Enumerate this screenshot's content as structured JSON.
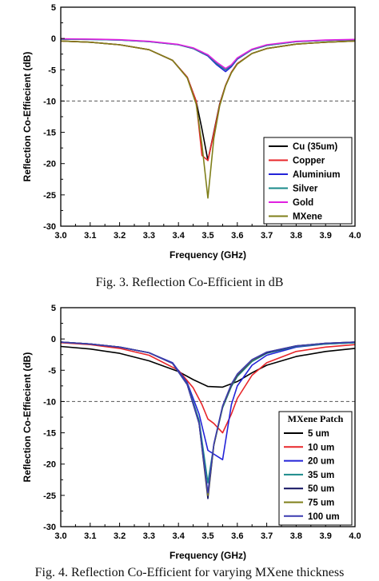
{
  "chart_data": [
    {
      "type": "line",
      "xlabel": "Frequency (GHz)",
      "ylabel": "Reflection Co-Effiecient (dB)",
      "xlim": [
        3.0,
        4.0
      ],
      "ylim": [
        -30,
        5
      ],
      "xticks": [
        "3.0",
        "3.1",
        "3.2",
        "3.3",
        "3.4",
        "3.5",
        "3.6",
        "3.7",
        "3.8",
        "3.9",
        "4.0"
      ],
      "yticks": [
        "5",
        "0",
        "-5",
        "-10",
        "-15",
        "-20",
        "-25",
        "-30"
      ],
      "reference_line": -10,
      "legend_position": "bottom-right",
      "legend_title": "",
      "series": [
        {
          "name": "Cu (35um)",
          "color": "#000000",
          "x": [
            3.0,
            3.1,
            3.2,
            3.3,
            3.38,
            3.43,
            3.46,
            3.48,
            3.5,
            3.52,
            3.54,
            3.56,
            3.58,
            3.6,
            3.65,
            3.7,
            3.8,
            3.9,
            4.0
          ],
          "y": [
            -0.4,
            -0.6,
            -1.0,
            -1.8,
            -3.5,
            -6.2,
            -10.0,
            -14.5,
            -19.5,
            -15.0,
            -10.5,
            -7.5,
            -5.4,
            -4.0,
            -2.4,
            -1.6,
            -0.9,
            -0.6,
            -0.4
          ]
        },
        {
          "name": "Copper",
          "color": "#e8262a",
          "x": [
            3.0,
            3.1,
            3.2,
            3.3,
            3.38,
            3.43,
            3.46,
            3.48,
            3.5,
            3.52,
            3.54,
            3.56,
            3.58,
            3.6,
            3.65,
            3.7,
            3.8,
            3.9,
            4.0
          ],
          "y": [
            -0.4,
            -0.6,
            -1.0,
            -1.8,
            -3.5,
            -6.2,
            -10.0,
            -18.7,
            -19.5,
            -15.2,
            -10.6,
            -7.5,
            -5.4,
            -4.0,
            -2.4,
            -1.6,
            -0.9,
            -0.6,
            -0.4
          ]
        },
        {
          "name": "Aluminium",
          "color": "#2323d8",
          "x": [
            3.0,
            3.1,
            3.2,
            3.3,
            3.4,
            3.45,
            3.5,
            3.53,
            3.56,
            3.58,
            3.6,
            3.65,
            3.7,
            3.8,
            3.9,
            4.0
          ],
          "y": [
            -0.1,
            -0.15,
            -0.25,
            -0.5,
            -1.0,
            -1.6,
            -2.8,
            -4.2,
            -5.3,
            -4.5,
            -3.3,
            -1.8,
            -1.1,
            -0.5,
            -0.3,
            -0.2
          ]
        },
        {
          "name": "Silver",
          "color": "#1a8a8a",
          "x": [
            3.0,
            3.1,
            3.2,
            3.3,
            3.4,
            3.45,
            3.5,
            3.53,
            3.56,
            3.58,
            3.6,
            3.65,
            3.7,
            3.8,
            3.9,
            4.0
          ],
          "y": [
            -0.1,
            -0.15,
            -0.25,
            -0.5,
            -1.0,
            -1.6,
            -2.7,
            -4.0,
            -5.0,
            -4.3,
            -3.2,
            -1.8,
            -1.1,
            -0.5,
            -0.3,
            -0.2
          ]
        },
        {
          "name": "Gold",
          "color": "#e020e0",
          "x": [
            3.0,
            3.1,
            3.2,
            3.3,
            3.4,
            3.45,
            3.5,
            3.53,
            3.56,
            3.58,
            3.6,
            3.65,
            3.7,
            3.8,
            3.9,
            4.0
          ],
          "y": [
            -0.05,
            -0.1,
            -0.2,
            -0.45,
            -0.95,
            -1.5,
            -2.6,
            -3.8,
            -4.8,
            -4.2,
            -3.1,
            -1.7,
            -1.0,
            -0.45,
            -0.25,
            -0.15
          ]
        },
        {
          "name": "MXene",
          "color": "#7f7f1a",
          "x": [
            3.0,
            3.1,
            3.2,
            3.3,
            3.38,
            3.43,
            3.46,
            3.48,
            3.5,
            3.52,
            3.54,
            3.56,
            3.58,
            3.6,
            3.65,
            3.7,
            3.8,
            3.9,
            4.0
          ],
          "y": [
            -0.4,
            -0.6,
            -1.0,
            -1.8,
            -3.5,
            -6.3,
            -10.5,
            -17.0,
            -25.5,
            -16.0,
            -10.8,
            -7.6,
            -5.5,
            -4.1,
            -2.4,
            -1.6,
            -0.9,
            -0.6,
            -0.4
          ]
        }
      ]
    },
    {
      "type": "line",
      "xlabel": "Frequency (GHz)",
      "ylabel": "Reflection Co-Effiecient (dB)",
      "xlim": [
        3.0,
        4.0
      ],
      "ylim": [
        -30,
        5
      ],
      "xticks": [
        "3.0",
        "3.1",
        "3.2",
        "3.3",
        "3.4",
        "3.5",
        "3.6",
        "3.7",
        "3.8",
        "3.9",
        "4.0"
      ],
      "yticks": [
        "5",
        "0",
        "-5",
        "-10",
        "-15",
        "-20",
        "-25",
        "-30"
      ],
      "reference_line": -10,
      "legend_position": "bottom-right",
      "legend_title": "MXene Patch",
      "series": [
        {
          "name": "5 um",
          "color": "#000000",
          "x": [
            3.0,
            3.1,
            3.2,
            3.3,
            3.4,
            3.45,
            3.5,
            3.55,
            3.6,
            3.65,
            3.7,
            3.8,
            3.9,
            4.0
          ],
          "y": [
            -1.2,
            -1.6,
            -2.3,
            -3.5,
            -5.2,
            -6.5,
            -7.6,
            -7.7,
            -6.8,
            -5.4,
            -4.2,
            -2.8,
            -2.0,
            -1.5
          ]
        },
        {
          "name": "10 um",
          "color": "#e8262a",
          "x": [
            3.0,
            3.1,
            3.2,
            3.3,
            3.4,
            3.45,
            3.48,
            3.5,
            3.52,
            3.55,
            3.58,
            3.6,
            3.65,
            3.7,
            3.8,
            3.9,
            4.0
          ],
          "y": [
            -0.6,
            -0.9,
            -1.5,
            -2.6,
            -5.0,
            -7.8,
            -10.5,
            -12.8,
            -13.5,
            -15.0,
            -12.0,
            -9.5,
            -5.8,
            -3.8,
            -2.0,
            -1.3,
            -0.9
          ]
        },
        {
          "name": "20 um",
          "color": "#2323d8",
          "x": [
            3.0,
            3.1,
            3.2,
            3.3,
            3.38,
            3.43,
            3.47,
            3.5,
            3.55,
            3.58,
            3.6,
            3.65,
            3.7,
            3.8,
            3.9,
            4.0
          ],
          "y": [
            -0.5,
            -0.8,
            -1.3,
            -2.2,
            -3.8,
            -7.0,
            -12.0,
            -17.8,
            -19.3,
            -10.5,
            -7.5,
            -4.2,
            -2.6,
            -1.3,
            -0.8,
            -0.6
          ]
        },
        {
          "name": "35 um",
          "color": "#1a8a8a",
          "x": [
            3.0,
            3.1,
            3.2,
            3.3,
            3.38,
            3.43,
            3.47,
            3.5,
            3.52,
            3.55,
            3.58,
            3.6,
            3.65,
            3.7,
            3.8,
            3.9,
            4.0
          ],
          "y": [
            -0.5,
            -0.8,
            -1.3,
            -2.2,
            -3.9,
            -7.2,
            -13.0,
            -23.0,
            -17.0,
            -11.0,
            -7.6,
            -6.0,
            -3.6,
            -2.3,
            -1.2,
            -0.8,
            -0.6
          ]
        },
        {
          "name": "50 um",
          "color": "#101060",
          "x": [
            3.0,
            3.1,
            3.2,
            3.3,
            3.38,
            3.43,
            3.47,
            3.5,
            3.52,
            3.55,
            3.58,
            3.6,
            3.65,
            3.7,
            3.8,
            3.9,
            4.0
          ],
          "y": [
            -0.5,
            -0.8,
            -1.3,
            -2.2,
            -3.9,
            -7.3,
            -13.5,
            -25.5,
            -17.0,
            -10.8,
            -7.4,
            -5.8,
            -3.4,
            -2.2,
            -1.1,
            -0.7,
            -0.5
          ]
        },
        {
          "name": "75 um",
          "color": "#7f7f1a",
          "x": [
            3.0,
            3.1,
            3.2,
            3.3,
            3.38,
            3.43,
            3.47,
            3.5,
            3.52,
            3.55,
            3.58,
            3.6,
            3.65,
            3.7,
            3.8,
            3.9,
            4.0
          ],
          "y": [
            -0.5,
            -0.8,
            -1.3,
            -2.2,
            -3.9,
            -7.3,
            -13.5,
            -25.0,
            -17.0,
            -10.8,
            -7.3,
            -5.7,
            -3.4,
            -2.1,
            -1.1,
            -0.7,
            -0.5
          ]
        },
        {
          "name": "100 um",
          "color": "#3a3ab0",
          "x": [
            3.0,
            3.1,
            3.2,
            3.3,
            3.38,
            3.43,
            3.47,
            3.5,
            3.52,
            3.55,
            3.58,
            3.6,
            3.65,
            3.7,
            3.8,
            3.9,
            4.0
          ],
          "y": [
            -0.5,
            -0.8,
            -1.3,
            -2.2,
            -3.9,
            -7.3,
            -13.5,
            -24.6,
            -16.8,
            -10.7,
            -7.2,
            -5.6,
            -3.3,
            -2.1,
            -1.1,
            -0.7,
            -0.5
          ]
        }
      ]
    }
  ],
  "captions": {
    "fig3": "Fig. 3. Reflection Co-Efficient in dB",
    "fig4": "Fig. 4. Reflection Co-Efficient for varying MXene thickness"
  }
}
